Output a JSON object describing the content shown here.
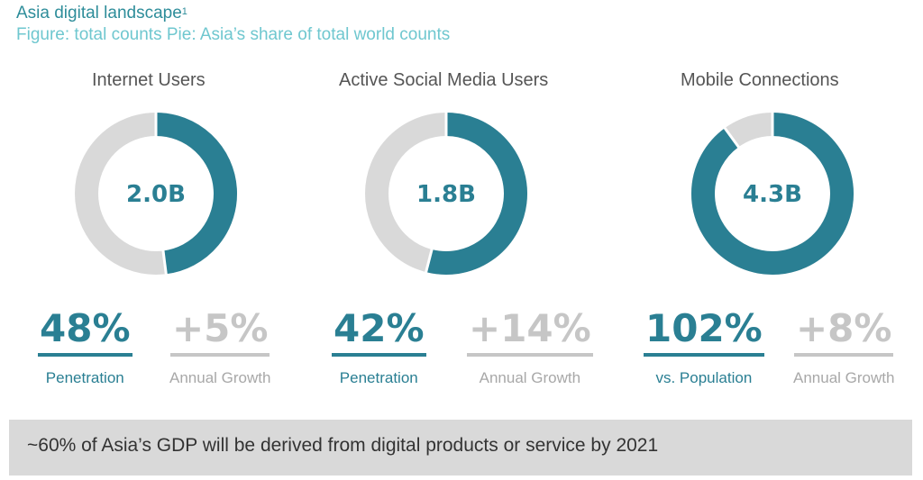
{
  "header": {
    "title": "Asia digital landscape",
    "footnote_marker": "1",
    "subtitle": "Figure: total counts Pie: Asia’s share of total world counts"
  },
  "colors": {
    "accent": "#2a7f93",
    "track": "#d9d9d9",
    "muted": "#c6c6c6",
    "title_teal": "#2e8d9a",
    "subtitle_teal": "#6fc7cf"
  },
  "chart_data": [
    {
      "type": "pie",
      "title": "Internet Users",
      "center_label": "2.0B",
      "asia_share": 0.48,
      "slices": [
        {
          "label": "Asia",
          "value": 48,
          "color": "#2a7f93"
        },
        {
          "label": "Rest of world",
          "value": 52,
          "color": "#d9d9d9"
        }
      ],
      "stats": [
        {
          "value": "48%",
          "label": "Penetration",
          "style": "primary"
        },
        {
          "value": "+5%",
          "label": "Annual Growth",
          "style": "secondary"
        }
      ]
    },
    {
      "type": "pie",
      "title": "Active Social Media Users",
      "center_label": "1.8B",
      "asia_share": 0.54,
      "slices": [
        {
          "label": "Asia",
          "value": 54,
          "color": "#2a7f93"
        },
        {
          "label": "Rest of world",
          "value": 46,
          "color": "#d9d9d9"
        }
      ],
      "stats": [
        {
          "value": "42%",
          "label": "Penetration",
          "style": "primary"
        },
        {
          "value": "+14%",
          "label": "Annual Growth",
          "style": "secondary"
        }
      ]
    },
    {
      "type": "pie",
      "title": "Mobile Connections",
      "center_label": "4.3B",
      "asia_share": 0.9,
      "slices": [
        {
          "label": "Asia",
          "value": 90,
          "color": "#2a7f93"
        },
        {
          "label": "Rest of world",
          "value": 10,
          "color": "#d9d9d9"
        }
      ],
      "stats": [
        {
          "value": "102%",
          "label": "vs. Population",
          "style": "primary"
        },
        {
          "value": "+8%",
          "label": "Annual Growth",
          "style": "secondary"
        }
      ]
    }
  ],
  "footer": {
    "text": "~60% of Asia’s GDP will be derived from digital products or service by 2021"
  }
}
